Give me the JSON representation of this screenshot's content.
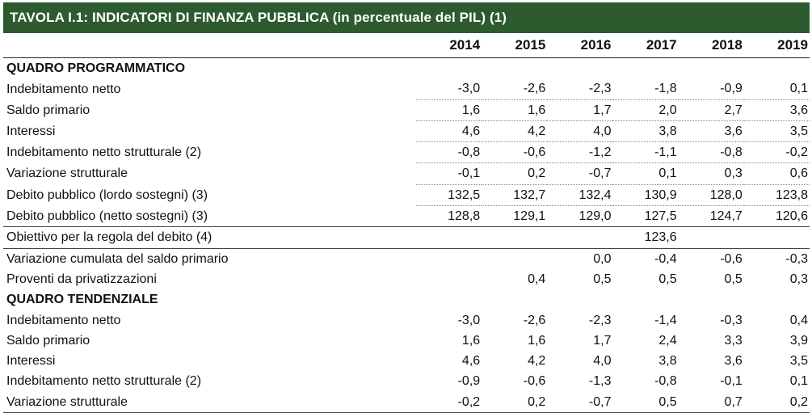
{
  "title": "TAVOLA I.1: INDICATORI DI FINANZA PUBBLICA (in percentuale del PIL) (1)",
  "years": [
    "2014",
    "2015",
    "2016",
    "2017",
    "2018",
    "2019"
  ],
  "sections": {
    "programmatico": {
      "label": "QUADRO PROGRAMMATICO",
      "rows": [
        {
          "label": "Indebitamento netto",
          "values": [
            "-3,0",
            "-2,6",
            "-2,3",
            "-1,8",
            "-0,9",
            "0,1"
          ]
        },
        {
          "label": "Saldo primario",
          "values": [
            "1,6",
            "1,6",
            "1,7",
            "2,0",
            "2,7",
            "3,6"
          ]
        },
        {
          "label": "Interessi",
          "values": [
            "4,6",
            "4,2",
            "4,0",
            "3,8",
            "3,6",
            "3,5"
          ]
        },
        {
          "label": "Indebitamento netto strutturale (2)",
          "values": [
            "-0,8",
            "-0,6",
            "-1,2",
            "-1,1",
            "-0,8",
            "-0,2"
          ]
        },
        {
          "label": "Variazione strutturale",
          "values": [
            "-0,1",
            "0,2",
            "-0,7",
            "0,1",
            "0,3",
            "0,6"
          ]
        },
        {
          "label": "Debito pubblico (lordo sostegni) (3)",
          "values": [
            "132,5",
            "132,7",
            "132,4",
            "130,9",
            "128,0",
            "123,8"
          ]
        },
        {
          "label": "Debito pubblico (netto sostegni) (3)",
          "values": [
            "128,8",
            "129,1",
            "129,0",
            "127,5",
            "124,7",
            "120,6"
          ]
        },
        {
          "label": "Obiettivo per la regola del debito (4)",
          "values": [
            "",
            "",
            "",
            "123,6",
            "",
            ""
          ]
        },
        {
          "label": "Variazione cumulata del saldo primario",
          "values": [
            "",
            "",
            "0,0",
            "-0,4",
            "-0,6",
            "-0,3"
          ]
        },
        {
          "label": "Proventi da privatizzazioni",
          "values": [
            "",
            "0,4",
            "0,5",
            "0,5",
            "0,5",
            "0,3"
          ]
        }
      ]
    },
    "tendenziale": {
      "label": "QUADRO TENDENZIALE",
      "rows": [
        {
          "label": "Indebitamento netto",
          "values": [
            "-3,0",
            "-2,6",
            "-2,3",
            "-1,4",
            "-0,3",
            "0,4"
          ]
        },
        {
          "label": "Saldo primario",
          "values": [
            "1,6",
            "1,6",
            "1,7",
            "2,4",
            "3,3",
            "3,9"
          ]
        },
        {
          "label": "Interessi",
          "values": [
            "4,6",
            "4,2",
            "4,0",
            "3,8",
            "3,6",
            "3,5"
          ]
        },
        {
          "label": "Indebitamento netto strutturale (2)",
          "values": [
            "-0,9",
            "-0,6",
            "-1,3",
            "-0,8",
            "-0,1",
            "0,1"
          ]
        },
        {
          "label": "Variazione strutturale",
          "values": [
            "-0,2",
            "0,2",
            "-0,7",
            "0,5",
            "0,7",
            "0,2"
          ]
        }
      ]
    }
  },
  "colors": {
    "title_bg": "#2e5a2f",
    "title_fg": "#ffffff"
  }
}
